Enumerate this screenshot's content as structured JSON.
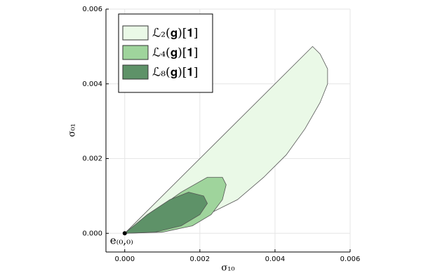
{
  "chart_data": {
    "type": "polygon",
    "x_label": "σ₁₀",
    "y_label": "σ₀₁",
    "xlim": [
      -0.0005,
      0.006
    ],
    "ylim": [
      -0.0005,
      0.006
    ],
    "xticks": [
      {
        "value": 0,
        "label": "0.000"
      },
      {
        "value": 0.002,
        "label": "0.002"
      },
      {
        "value": 0.004,
        "label": "0.004"
      },
      {
        "value": 0.006,
        "label": "0.006"
      }
    ],
    "yticks": [
      {
        "value": 0,
        "label": "0.000"
      },
      {
        "value": 0.002,
        "label": "0.002"
      },
      {
        "value": 0.004,
        "label": "0.004"
      },
      {
        "value": 0.006,
        "label": "0.006"
      }
    ],
    "grid": true,
    "legend": "top-left",
    "series": [
      {
        "name": "ℒ₂(𝐠)[𝟏]",
        "color": "#eaf9e7",
        "x": [
          0,
          0.005,
          0.0052,
          0.0054,
          0.0054,
          0.0052,
          0.0048,
          0.0043,
          0.0037,
          0.003,
          0.0022,
          0.0014,
          0.0006,
          0
        ],
        "y": [
          0,
          0.005,
          0.0048,
          0.0044,
          0.004,
          0.0035,
          0.0028,
          0.0021,
          0.0015,
          0.0009,
          0.0005,
          0.0002,
          5e-05,
          0
        ]
      },
      {
        "name": "ℒ₄(𝐠)[𝟏]",
        "color": "#9fd49c",
        "x": [
          0,
          0.0008,
          0.0015,
          0.0022,
          0.0026,
          0.0027,
          0.0026,
          0.0023,
          0.0018,
          0.001,
          0
        ],
        "y": [
          0,
          0.0006,
          0.0011,
          0.0015,
          0.0015,
          0.0013,
          0.0009,
          0.0005,
          0.0002,
          3e-05,
          0
        ]
      },
      {
        "name": "ℒ₈(𝐠)[𝟏]",
        "color": "#5e9268",
        "x": [
          0,
          0.0006,
          0.0012,
          0.0017,
          0.0021,
          0.0022,
          0.002,
          0.0015,
          0.0008,
          0
        ],
        "y": [
          0,
          0.0005,
          0.0009,
          0.0011,
          0.001,
          0.0008,
          0.0005,
          0.0002,
          3e-05,
          0
        ]
      }
    ],
    "point": {
      "x": 0,
      "y": 0,
      "label": "e₍₀,₀₎"
    }
  }
}
